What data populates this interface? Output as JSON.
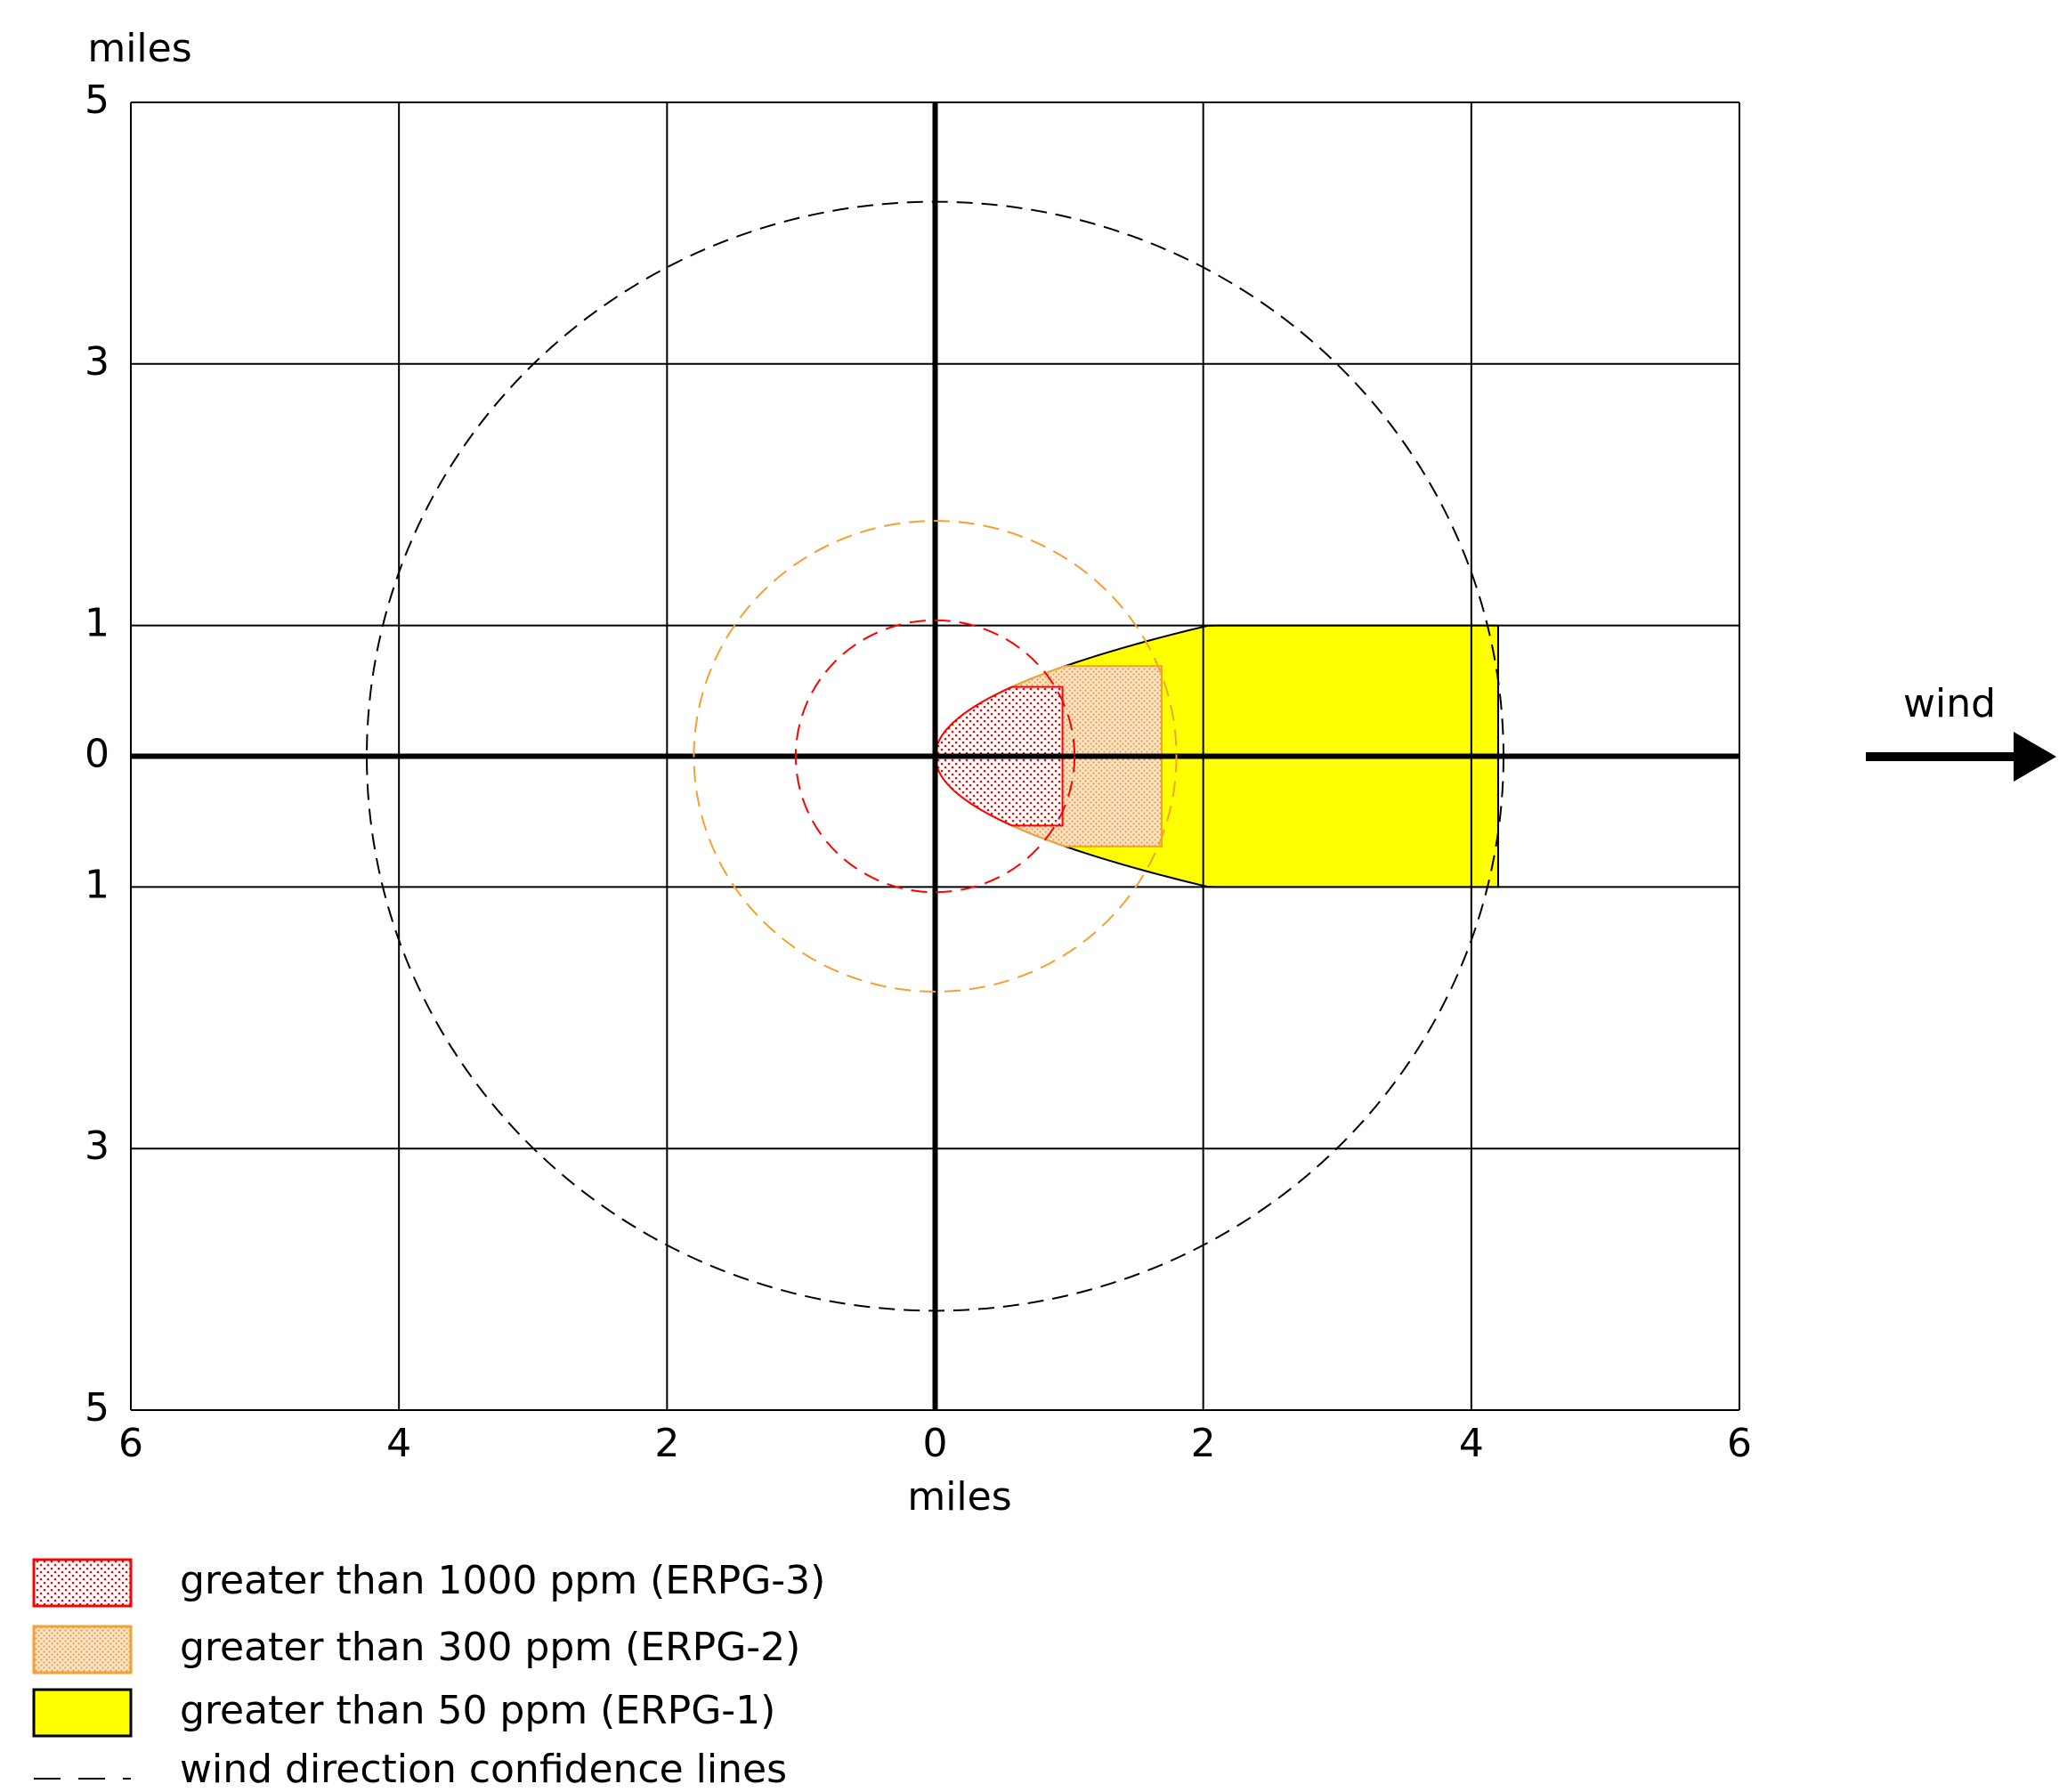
{
  "chart_data": {
    "type": "threat-zone",
    "ylabel": "miles",
    "xlabel": "miles",
    "annotation": "wind",
    "xlim": [
      -6,
      6
    ],
    "xticks": [
      {
        "value": -6,
        "label": "6"
      },
      {
        "value": -4,
        "label": "4"
      },
      {
        "value": -2,
        "label": "2"
      },
      0,
      2,
      4,
      6
    ],
    "ylim": [
      -5,
      5
    ],
    "yticks": [
      5,
      3,
      1,
      0,
      {
        "value": -1,
        "label": "1"
      },
      {
        "value": -3,
        "label": "3"
      },
      {
        "value": -5,
        "label": "5"
      }
    ],
    "grid": true,
    "series": [
      {
        "name": "greater than 1000 ppm (ERPG-3)",
        "color": "#ff0000",
        "downwind": 0.95,
        "half_width": 0.53,
        "confidence_radius": 1.04
      },
      {
        "name": "greater than 300 ppm (ERPG-2)",
        "color": "#f5a030",
        "downwind": 1.69,
        "half_width": 0.69,
        "confidence_radius": 1.8
      },
      {
        "name": "greater than 50 ppm (ERPG-1)",
        "color": "#ffff00",
        "downwind": 4.2,
        "half_width": 1.0,
        "confidence_radius": 4.24
      }
    ],
    "confidence_label": "wind direction confidence lines"
  }
}
